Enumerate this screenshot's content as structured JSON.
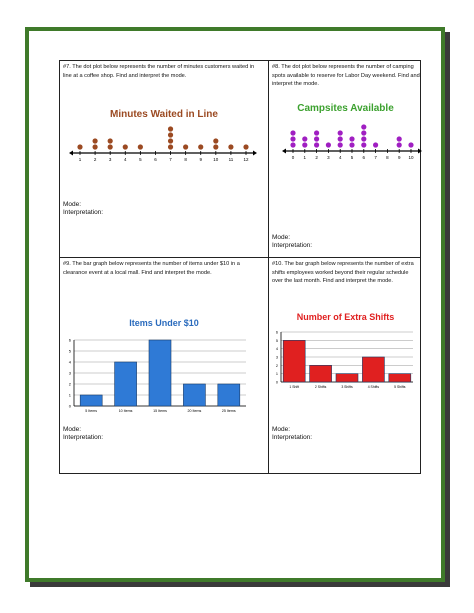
{
  "colors": {
    "frame": "#3f7a2a",
    "shadow": "#3a3a3a",
    "dot7": "#9b4a22",
    "dot8": "#a01fc2",
    "bar9": "#2f7ad6",
    "bar10": "#e02020",
    "title7": "#9b4a22",
    "title8": "#3ca12f",
    "title9": "#2a6bbd",
    "title10": "#e02020"
  },
  "problems": [
    {
      "prompt": "#7.  The dot plot below represents the number of minutes customers waited in line at a coffee shop.  Find and interpret the mode.",
      "mode_label": "Mode:",
      "interp_label": "Interpretation:"
    },
    {
      "prompt": "#8.  The dot plot below represents the number of camping spots available to reserve for Labor Day weekend.  Find and interpret the mode.",
      "mode_label": "Mode:",
      "interp_label": "Interpretation:"
    },
    {
      "prompt": "#9.  The bar graph below represents the number of items under $10 in a clearance event at a local mall.  Find and interpret the mode.",
      "mode_label": "Mode:",
      "interp_label": "Interpretation:"
    },
    {
      "prompt": "#10.  The bar graph below represents the number of extra shifts employees worked beyond their regular schedule over the last month.  Find and interpret the mode.",
      "mode_label": "Mode:",
      "interp_label": "Interpretation:"
    }
  ],
  "chart_data": [
    {
      "type": "scatter",
      "title": "Minutes Waited in Line",
      "x": [
        1,
        2,
        3,
        4,
        5,
        6,
        7,
        8,
        9,
        10,
        11,
        12
      ],
      "values": [
        1,
        2,
        2,
        1,
        1,
        0,
        4,
        1,
        1,
        2,
        1,
        1
      ]
    },
    {
      "type": "scatter",
      "title": "Campsites Available",
      "x": [
        0,
        1,
        2,
        3,
        4,
        5,
        6,
        7,
        8,
        9,
        10
      ],
      "values": [
        3,
        2,
        3,
        1,
        3,
        2,
        4,
        1,
        0,
        2,
        1
      ]
    },
    {
      "type": "bar",
      "title": "Items Under $10",
      "categories": [
        "5 Items",
        "10 Items",
        "15 Items",
        "20 Items",
        "25 Items"
      ],
      "values": [
        1,
        4,
        6,
        2,
        2
      ],
      "ylim": [
        0,
        6
      ],
      "yticks": [
        0,
        1,
        2,
        3,
        4,
        5,
        6
      ]
    },
    {
      "type": "bar",
      "title": "Number of Extra Shifts",
      "categories": [
        "1 Shift",
        "2 Shifts",
        "3 Shifts",
        "4 Shifts",
        "5 Shifts"
      ],
      "values": [
        5,
        2,
        1,
        3,
        1
      ],
      "ylim": [
        0,
        6
      ],
      "yticks": [
        0,
        1,
        2,
        3,
        4,
        5,
        6
      ]
    }
  ]
}
